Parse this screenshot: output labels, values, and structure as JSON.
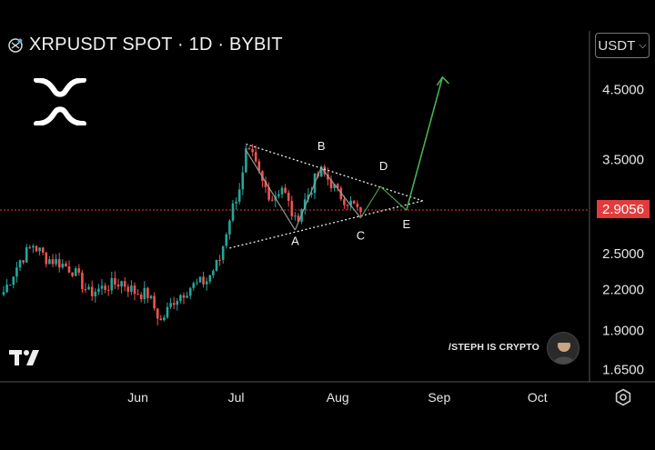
{
  "header": {
    "symbol_title": "XRPUSDT SPOT · 1D · BYBIT",
    "currency_selector": "USDT"
  },
  "watermark": {
    "author": "/STEPH IS CRYPTO"
  },
  "icons": {
    "title_icon": "crypto-symbol-icon",
    "brand_logo": "xrp-logo",
    "platform_logo": "tradingview-logo",
    "settings": "gear-icon"
  },
  "colors": {
    "background": "#000000",
    "up_candle": "#26a69a",
    "down_candle": "#ef5350",
    "current_price": "#e23b3b",
    "projection": "#4caf50"
  },
  "chart_data": {
    "type": "candlestick",
    "title": "XRPUSDT SPOT · 1D · BYBIT",
    "x_axis": {
      "ticks": [
        "Jun",
        "Jul",
        "Aug",
        "Sep",
        "Oct"
      ]
    },
    "y_axis": {
      "scale": "log",
      "ticks": [
        "4.5000",
        "3.5000",
        "2.5000",
        "2.2000",
        "1.9000",
        "1.6500"
      ],
      "ylim": [
        1.58,
        5.3
      ]
    },
    "current_price": "2.9056",
    "pattern_labels": [
      "A",
      "B",
      "C",
      "D",
      "E"
    ],
    "pattern": "contracting triangle (ABCDE)",
    "price_path": [
      {
        "date": "May 5",
        "close": 2.18
      },
      {
        "date": "May 10",
        "close": 2.44
      },
      {
        "date": "May 14",
        "close": 2.58
      },
      {
        "date": "May 18",
        "close": 2.46
      },
      {
        "date": "May 22",
        "close": 2.42
      },
      {
        "date": "May 26",
        "close": 2.36
      },
      {
        "date": "May 31",
        "close": 2.17
      },
      {
        "date": "Jun 5",
        "close": 2.22
      },
      {
        "date": "Jun 10",
        "close": 2.26
      },
      {
        "date": "Jun 14",
        "close": 2.18
      },
      {
        "date": "Jun 18",
        "close": 2.16
      },
      {
        "date": "Jun 22",
        "close": 1.96
      },
      {
        "date": "Jun 26",
        "close": 2.12
      },
      {
        "date": "Jul 1",
        "close": 2.22
      },
      {
        "date": "Jul 6",
        "close": 2.27
      },
      {
        "date": "Jul 10",
        "close": 2.45
      },
      {
        "date": "Jul 13",
        "close": 2.85
      },
      {
        "date": "Jul 17",
        "close": 3.3
      },
      {
        "date": "Jul 18",
        "close": 3.58
      },
      {
        "date": "Jul 20",
        "close": 3.52
      },
      {
        "date": "Jul 23",
        "close": 3.22
      },
      {
        "date": "Jul 26",
        "close": 3.05
      },
      {
        "date": "Jul 29",
        "close": 3.18
      },
      {
        "date": "Aug 2",
        "close": 2.8
      },
      {
        "date": "Aug 4",
        "close": 2.95
      },
      {
        "date": "Aug 8",
        "close": 3.25
      },
      {
        "date": "Aug 10",
        "close": 3.35
      },
      {
        "date": "Aug 13",
        "close": 3.22
      },
      {
        "date": "Aug 15",
        "close": 3.1
      },
      {
        "date": "Aug 18",
        "close": 3.02
      },
      {
        "date": "Aug 22",
        "close": 2.9
      }
    ]
  }
}
